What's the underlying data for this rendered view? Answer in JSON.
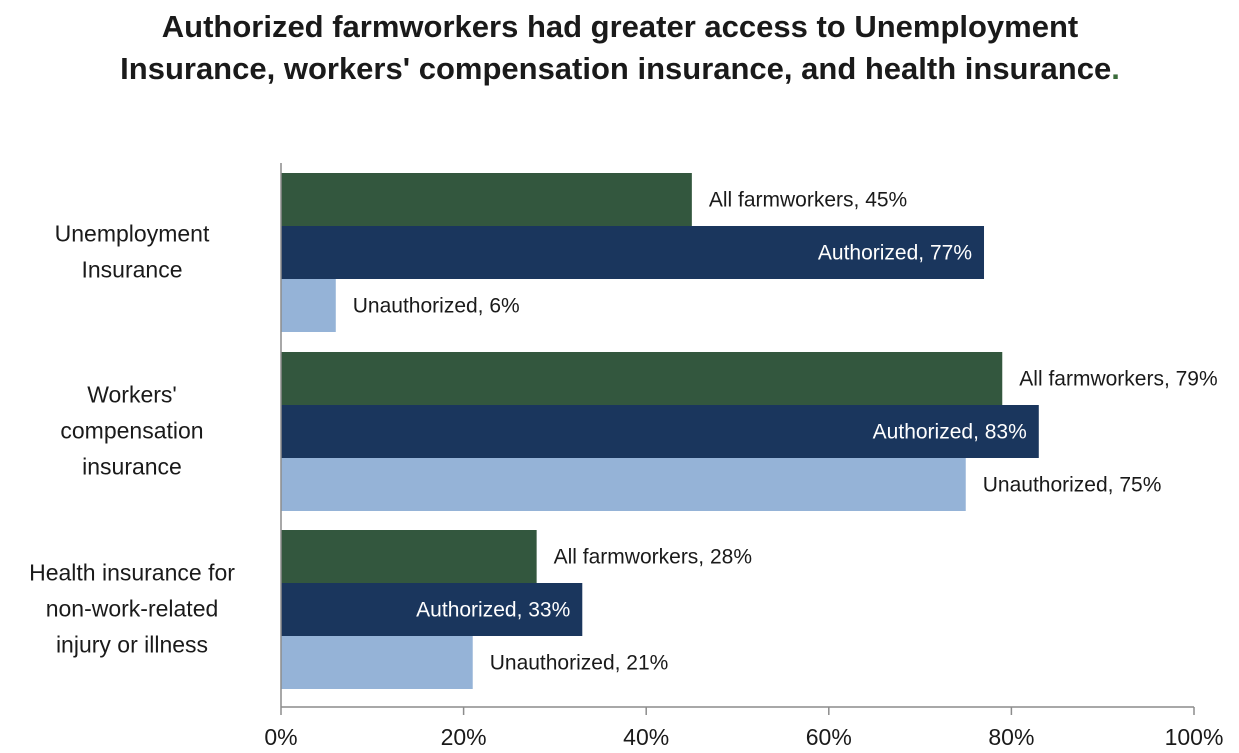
{
  "chart_data": {
    "type": "bar",
    "orientation": "horizontal",
    "title": "Authorized farmworkers had greater access to Unemployment Insurance, workers' compensation insurance, and health insurance",
    "title_trailing": ".",
    "categories": [
      "Unemployment Insurance",
      "Workers' compensation insurance",
      "Health insurance for non-work-related injury or illness"
    ],
    "category_lines": [
      [
        "Unemployment",
        "Insurance"
      ],
      [
        "Workers'",
        "compensation",
        "insurance"
      ],
      [
        "Health insurance for",
        "non-work-related",
        "injury or illness"
      ]
    ],
    "series": [
      {
        "name": "All farmworkers",
        "values": [
          45,
          79,
          28
        ],
        "labels": [
          "All farmworkers, 45%",
          "All farmworkers, 79%",
          "All farmworkers, 28%"
        ],
        "color": "#33573e"
      },
      {
        "name": "Authorized",
        "values": [
          77,
          83,
          33
        ],
        "labels": [
          "Authorized, 77%",
          "Authorized, 83%",
          "Authorized, 33%"
        ],
        "color": "#1a365d"
      },
      {
        "name": "Unauthorized",
        "values": [
          6,
          75,
          21
        ],
        "labels": [
          "Unauthorized, 6%",
          "Unauthorized, 75%",
          "Unauthorized, 21%"
        ],
        "color": "#95b3d7"
      }
    ],
    "label_inside": [
      [
        false,
        true,
        false
      ],
      [
        false,
        true,
        false
      ],
      [
        false,
        true,
        false
      ]
    ],
    "xlim": [
      0,
      100
    ],
    "xticks": [
      0,
      20,
      40,
      60,
      80,
      100
    ],
    "xtick_labels": [
      "0%",
      "20%",
      "40%",
      "60%",
      "80%",
      "100%"
    ],
    "xlabel": "",
    "ylabel": "",
    "grid": false,
    "legend": "none"
  }
}
